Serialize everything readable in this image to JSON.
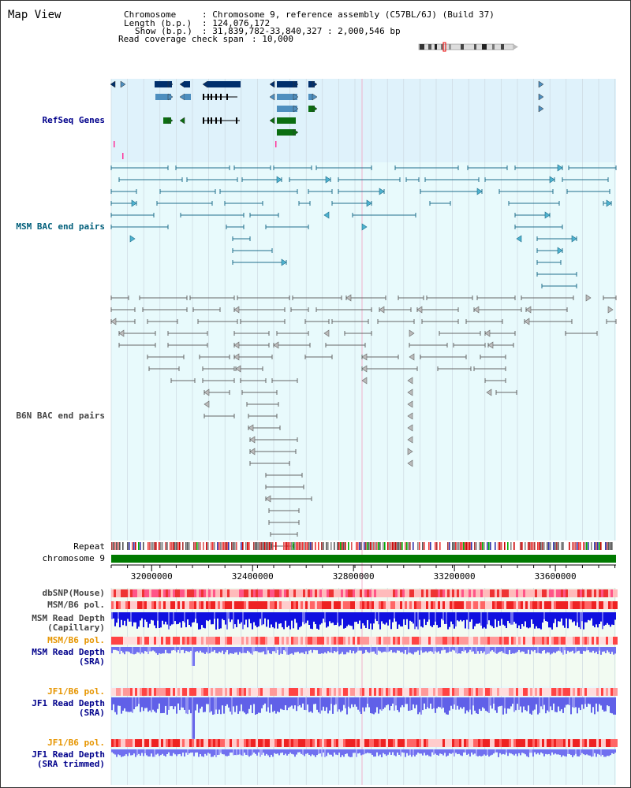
{
  "title": "Map View",
  "header": {
    "chromosome_label": "Chromosome",
    "chromosome_value": ": Chromosome 9, reference assembly (C57BL/6J) (Build 37)",
    "length_label": "Length (b.p.)",
    "length_value": ": 124,076,172",
    "show_label": "Show (b.p.)",
    "show_value": ": 31,839,782-33,840,327 : 2,000,546 bp",
    "coverage_label": "Read coverage check span",
    "coverage_value": ": 10,000"
  },
  "tracks": {
    "refseq": {
      "label": "RefSeq Genes",
      "color": "#00008b",
      "bg": "#dff2fb"
    },
    "msm_bac": {
      "label": "MSM BAC end pairs",
      "color": "#005e7a",
      "bg": "#e8fafc"
    },
    "b6n_bac": {
      "label": "B6N BAC end pairs",
      "color": "#555555",
      "bg": "#e8fafc"
    },
    "repeat": {
      "label": "Repeat"
    },
    "chromosome": {
      "label": "chromosome 9",
      "color": "#007a00"
    },
    "dbsnp": {
      "label": "dbSNP(Mouse)"
    },
    "msm_b6_pol_1": {
      "label": "MSM/B6 pol."
    },
    "msm_depth_cap": {
      "label": "MSM Read Depth\n(Capillary)"
    },
    "msm_b6_pol_2": {
      "label": "MSM/B6 pol."
    },
    "msm_depth_sra": {
      "label": "MSM Read Depth\n(SRA)"
    },
    "jf1_b6_pol_1": {
      "label": "JF1/B6 pol."
    },
    "jf1_depth_sra": {
      "label": "JF1 Read Depth\n(SRA)"
    },
    "jf1_b6_pol_2": {
      "label": "JF1/B6 pol."
    },
    "jf1_depth_trim": {
      "label": "JF1 Read Depth\n(SRA trimmed)"
    }
  },
  "axis": {
    "ticks": [
      "32000000",
      "32400000",
      "32800000",
      "33200000",
      "33600000"
    ],
    "tick_values": [
      32000000,
      32400000,
      32800000,
      33200000,
      33600000
    ],
    "start": 31839782,
    "end": 33840327
  },
  "colors": {
    "label_blue": "#00008b",
    "label_teal": "#005e7a",
    "label_gray": "#444444",
    "label_orange": "#e69500"
  }
}
